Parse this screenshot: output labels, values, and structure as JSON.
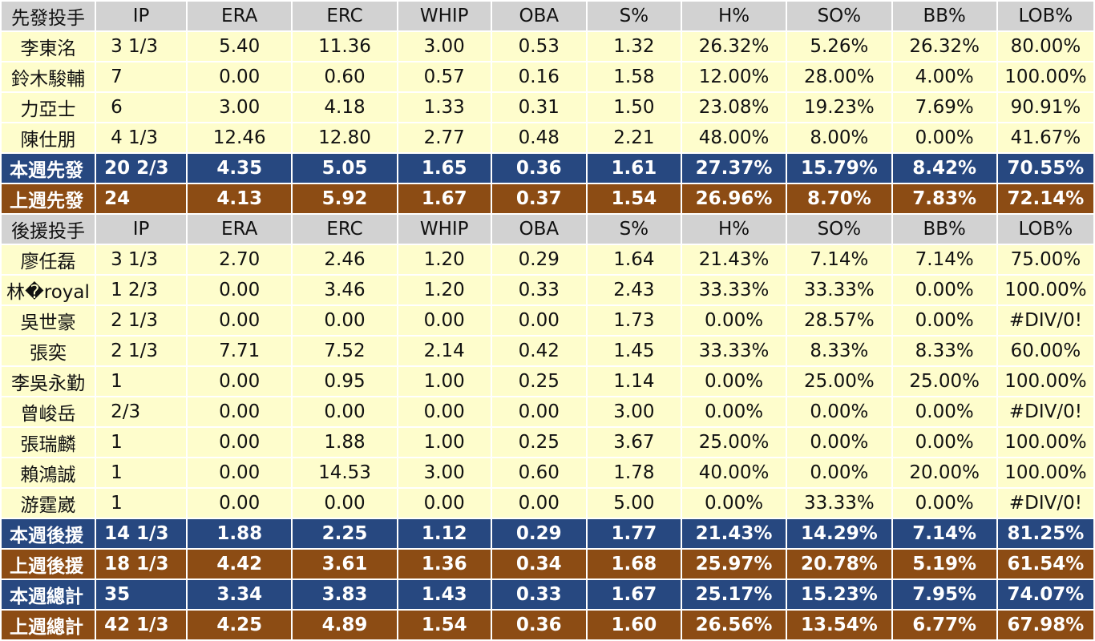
{
  "columns": [
    "IP",
    "ERA",
    "ERC",
    "WHIP",
    "OBA",
    "S%",
    "H%",
    "SO%",
    "BB%",
    "LOB%"
  ],
  "starter_header": "先發投手",
  "starters": [
    {
      "name": "李東洺",
      "values": [
        "3 1/3",
        "5.40",
        "11.36",
        "3.00",
        "0.53",
        "1.32",
        "26.32%",
        "5.26%",
        "26.32%",
        "80.00%"
      ]
    },
    {
      "name": "鈴木駿輔",
      "values": [
        "7",
        "0.00",
        "0.60",
        "0.57",
        "0.16",
        "1.58",
        "12.00%",
        "28.00%",
        "4.00%",
        "100.00%"
      ]
    },
    {
      "name": "力亞士",
      "values": [
        "6",
        "3.00",
        "4.18",
        "1.33",
        "0.31",
        "1.50",
        "23.08%",
        "19.23%",
        "7.69%",
        "90.91%"
      ]
    },
    {
      "name": "陳仕朋",
      "values": [
        "4 1/3",
        "12.46",
        "12.80",
        "2.77",
        "0.48",
        "2.21",
        "48.00%",
        "8.00%",
        "0.00%",
        "41.67%"
      ]
    }
  ],
  "starter_summary": [
    {
      "name": "本週先發",
      "style": "blue",
      "values": [
        "20 2/3",
        "4.35",
        "5.05",
        "1.65",
        "0.36",
        "1.61",
        "27.37%",
        "15.79%",
        "8.42%",
        "70.55%"
      ]
    },
    {
      "name": "上週先發",
      "style": "brown",
      "values": [
        "24",
        "4.13",
        "5.92",
        "1.67",
        "0.37",
        "1.54",
        "26.96%",
        "8.70%",
        "7.83%",
        "72.14%"
      ]
    }
  ],
  "reliever_header": "後援投手",
  "relievers": [
    {
      "name": "廖任磊",
      "values": [
        "3 1/3",
        "2.70",
        "2.46",
        "1.20",
        "0.29",
        "1.64",
        "21.43%",
        "7.14%",
        "7.14%",
        "75.00%"
      ]
    },
    {
      "name": "林�royal",
      "values": [
        "1 2/3",
        "0.00",
        "3.46",
        "1.20",
        "0.33",
        "2.43",
        "33.33%",
        "33.33%",
        "0.00%",
        "100.00%"
      ]
    },
    {
      "name": "吳世豪",
      "values": [
        "2 1/3",
        "0.00",
        "0.00",
        "0.00",
        "0.00",
        "1.73",
        "0.00%",
        "28.57%",
        "0.00%",
        "#DIV/0!"
      ]
    },
    {
      "name": "張奕",
      "values": [
        "2 1/3",
        "7.71",
        "7.52",
        "2.14",
        "0.42",
        "1.45",
        "33.33%",
        "8.33%",
        "8.33%",
        "60.00%"
      ]
    },
    {
      "name": "李吳永勤",
      "values": [
        "1",
        "0.00",
        "0.95",
        "1.00",
        "0.25",
        "1.14",
        "0.00%",
        "25.00%",
        "25.00%",
        "100.00%"
      ]
    },
    {
      "name": "曾峻岳",
      "values": [
        "2/3",
        "0.00",
        "0.00",
        "0.00",
        "0.00",
        "3.00",
        "0.00%",
        "0.00%",
        "0.00%",
        "#DIV/0!"
      ]
    },
    {
      "name": "張瑞麟",
      "values": [
        "1",
        "0.00",
        "1.88",
        "1.00",
        "0.25",
        "3.67",
        "25.00%",
        "0.00%",
        "0.00%",
        "100.00%"
      ]
    },
    {
      "name": "賴鴻誠",
      "values": [
        "1",
        "0.00",
        "14.53",
        "3.00",
        "0.60",
        "1.78",
        "40.00%",
        "0.00%",
        "20.00%",
        "100.00%"
      ]
    },
    {
      "name": "游霆崴",
      "values": [
        "1",
        "0.00",
        "0.00",
        "0.00",
        "0.00",
        "5.00",
        "0.00%",
        "33.33%",
        "0.00%",
        "#DIV/0!"
      ]
    }
  ],
  "reliever_summary": [
    {
      "name": "本週後援",
      "style": "blue",
      "values": [
        "14 1/3",
        "1.88",
        "2.25",
        "1.12",
        "0.29",
        "1.77",
        "21.43%",
        "14.29%",
        "7.14%",
        "81.25%"
      ]
    },
    {
      "name": "上週後援",
      "style": "brown",
      "values": [
        "18 1/3",
        "4.42",
        "3.61",
        "1.36",
        "0.34",
        "1.68",
        "25.97%",
        "20.78%",
        "5.19%",
        "61.54%"
      ]
    },
    {
      "name": "本週總計",
      "style": "blue",
      "values": [
        "35",
        "3.34",
        "3.83",
        "1.43",
        "0.33",
        "1.67",
        "25.17%",
        "15.23%",
        "7.95%",
        "74.07%"
      ]
    },
    {
      "name": "上週總計",
      "style": "brown",
      "values": [
        "42 1/3",
        "4.25",
        "4.89",
        "1.54",
        "0.36",
        "1.60",
        "26.56%",
        "13.54%",
        "6.77%",
        "67.98%"
      ]
    }
  ],
  "colors": {
    "header_bg": "#d2d2d2",
    "row_bg": "#fefdcc",
    "blue": "#274880",
    "brown": "#8c4c14"
  }
}
